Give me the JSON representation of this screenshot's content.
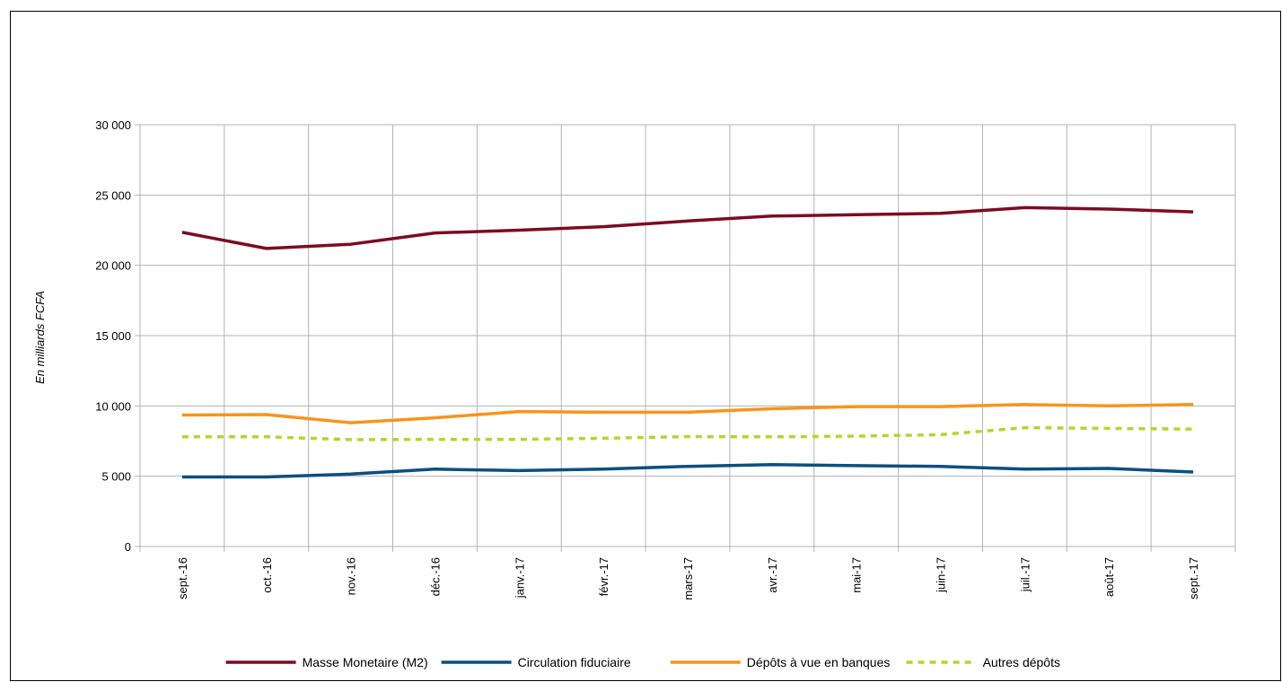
{
  "chart_data": {
    "type": "line",
    "title": "",
    "xlabel": "",
    "ylabel": "En milliards FCFA",
    "ylim": [
      0,
      30000
    ],
    "yticks": [
      0,
      5000,
      10000,
      15000,
      20000,
      25000,
      30000
    ],
    "ytick_labels": [
      "0",
      "5 000",
      "10 000",
      "15 000",
      "20 000",
      "25 000",
      "30 000"
    ],
    "grid": true,
    "legend_position": "bottom",
    "categories": [
      "sept.-16",
      "oct.-16",
      "nov.-16",
      "déc.-16",
      "janv.-17",
      "févr.-17",
      "mars-17",
      "avr.-17",
      "mai-17",
      "juin-17",
      "juil.-17",
      "août-17",
      "sept.-17"
    ],
    "series": [
      {
        "name": "Masse Monetaire (M2)",
        "color": "#7b0c22",
        "dash": "solid",
        "values": [
          22350,
          21200,
          21500,
          22300,
          22500,
          22750,
          23150,
          23500,
          23600,
          23700,
          24100,
          24000,
          23800
        ]
      },
      {
        "name": "Circulation fiduciaire",
        "color": "#0b4f7f",
        "dash": "solid",
        "values": [
          4950,
          4950,
          5150,
          5500,
          5400,
          5500,
          5700,
          5820,
          5750,
          5700,
          5500,
          5550,
          5300
        ]
      },
      {
        "name": "Dépôts à vue en banques",
        "color": "#f7941d",
        "dash": "solid",
        "values": [
          9350,
          9380,
          8800,
          9150,
          9600,
          9550,
          9550,
          9800,
          9950,
          9950,
          10100,
          10000,
          10100
        ]
      },
      {
        "name": "Autres dépôts",
        "color": "#b5d334",
        "dash": "dashed",
        "values": [
          7800,
          7800,
          7600,
          7620,
          7620,
          7700,
          7820,
          7800,
          7850,
          7950,
          8450,
          8400,
          8350
        ]
      }
    ]
  }
}
